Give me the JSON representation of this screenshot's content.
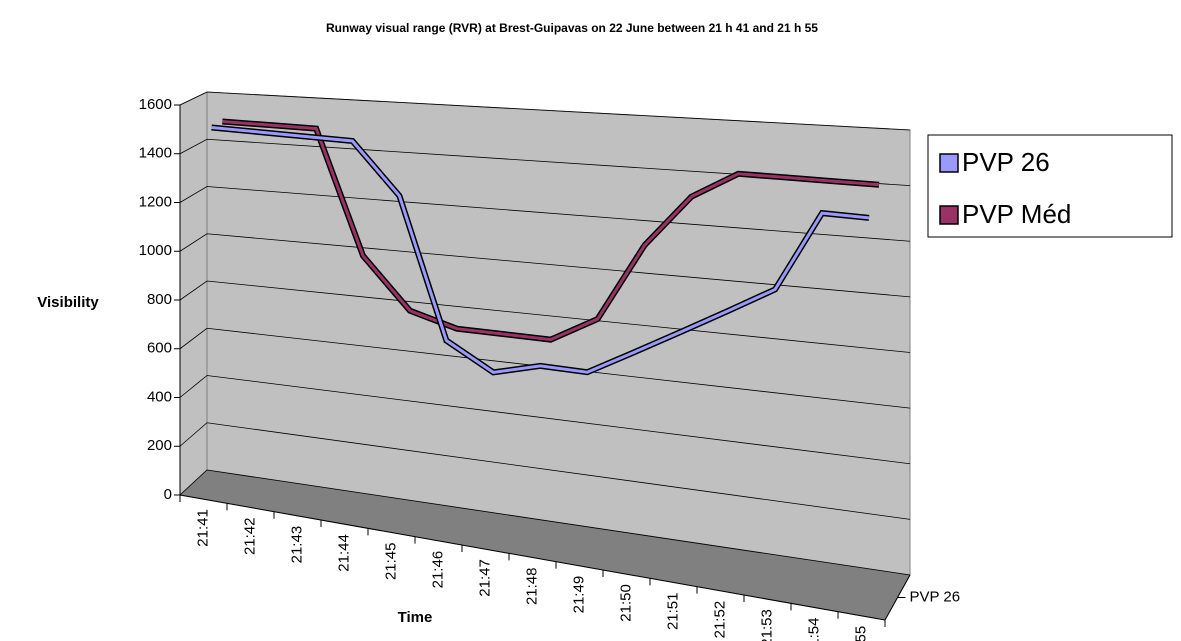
{
  "chart_data": {
    "type": "line3d",
    "title": "Runway visual range (RVR) at Brest-Guipavas on 22 June between 21 h 41 and 21 h 55",
    "xlabel": "Time",
    "ylabel": "Visibility",
    "categories": [
      "21:41",
      "21:42",
      "21:43",
      "21:44",
      "21:45",
      "21:46",
      "21:47",
      "21:48",
      "21:49",
      "21:50",
      "21:51",
      "21:52",
      "21:53",
      "21:54",
      "21:55"
    ],
    "series": [
      {
        "name": "PVP 26",
        "color": "#9999ff",
        "values": [
          1500,
          1500,
          1500,
          1500,
          1300,
          750,
          650,
          700,
          700,
          800,
          900,
          1000,
          1100,
          1400,
          1400
        ]
      },
      {
        "name": "PVP Méd",
        "color": "#993366",
        "values": [
          1500,
          1500,
          1500,
          1000,
          800,
          750,
          750,
          750,
          850,
          1150,
          1350,
          1450,
          1450,
          1450,
          1450
        ]
      }
    ],
    "ylim": [
      0,
      1600
    ],
    "yticks": [
      0,
      200,
      400,
      600,
      800,
      1000,
      1200,
      1400,
      1600
    ],
    "grid": true,
    "legend": "right"
  }
}
